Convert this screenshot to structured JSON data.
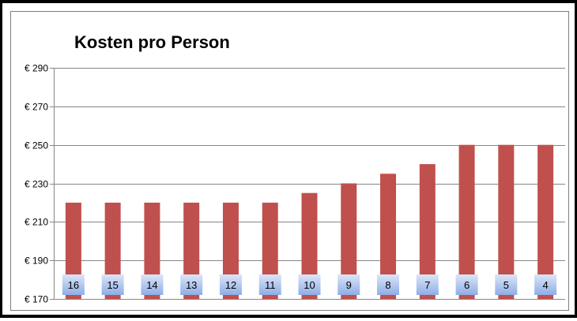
{
  "chart_data": {
    "type": "bar",
    "title": "Kosten pro Person",
    "xlabel": "",
    "ylabel": "",
    "categories": [
      "16",
      "15",
      "14",
      "13",
      "12",
      "11",
      "10",
      "9",
      "8",
      "7",
      "6",
      "5",
      "4"
    ],
    "values": [
      220,
      220,
      220,
      220,
      220,
      220,
      225,
      230,
      235,
      240,
      250,
      250,
      250
    ],
    "data_labels": [
      "16",
      "15",
      "14",
      "13",
      "12",
      "11",
      "10",
      "9",
      "8",
      "7",
      "6",
      "5",
      "4"
    ],
    "ylim": [
      170,
      290
    ],
    "y_ticks": [
      170,
      190,
      210,
      230,
      250,
      270,
      290
    ],
    "y_tick_labels": [
      "€ 170",
      "€ 190",
      "€ 210",
      "€ 230",
      "€ 250",
      "€ 270",
      "€ 290"
    ],
    "grid": true,
    "legend": "none",
    "colors": {
      "bar": "#c0504d",
      "label_box_top": "#dbe5f8",
      "label_box_bottom": "#8eaee6",
      "gridline": "#868686",
      "axis": "#868686"
    }
  }
}
